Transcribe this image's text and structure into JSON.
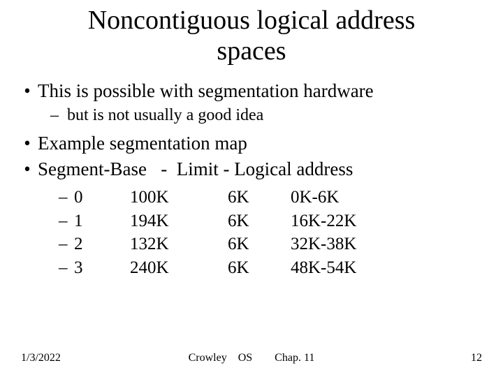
{
  "title_line1": "Noncontiguous logical address",
  "title_line2": "spaces",
  "bullets": {
    "b1": "This is possible with segmentation hardware",
    "b1_sub": "but is not usually a good idea",
    "b2": "Example segmentation map",
    "b3": "Segment-Base   -  Limit - Logical address"
  },
  "seg_rows": [
    {
      "seg": "0",
      "base": "100K",
      "limit": "6K",
      "logical": "0K-6K"
    },
    {
      "seg": "1",
      "base": "194K",
      "limit": "6K",
      "logical": "16K-22K"
    },
    {
      "seg": "2",
      "base": "132K",
      "limit": "6K",
      "logical": "32K-38K"
    },
    {
      "seg": "3",
      "base": "240K",
      "limit": "6K",
      "logical": "48K-54K"
    }
  ],
  "footer": {
    "date": "1/3/2022",
    "center": "Crowley OS  Chap. 11",
    "page": "12"
  },
  "colors": {
    "background": "#ffffff",
    "text": "#000000"
  },
  "fonts": {
    "family": "Times New Roman",
    "title_size_pt": 38,
    "body_size_pt": 27,
    "sub_size_pt": 24,
    "table_size_pt": 25,
    "footer_size_pt": 16
  }
}
